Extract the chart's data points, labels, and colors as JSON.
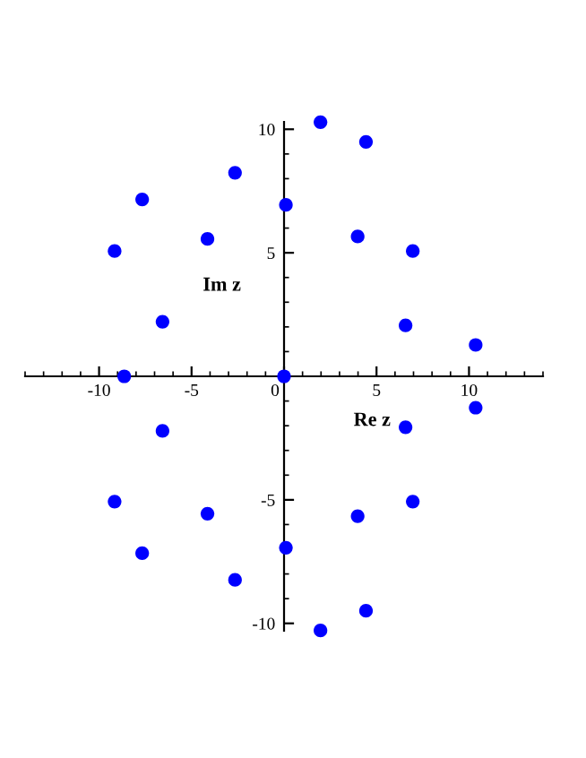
{
  "chart_data": {
    "type": "scatter",
    "xlabel": "Re z",
    "ylabel": "Im z",
    "x": [
      1.97,
      4.43,
      -2.65,
      -7.67,
      0.1,
      -4.14,
      3.98,
      -9.16,
      6.96,
      -6.57,
      6.57,
      10.36,
      -8.64,
      0,
      10.36,
      6.57,
      -6.57,
      -9.16,
      6.96,
      -4.14,
      3.98,
      0.1,
      -7.67,
      -2.65,
      4.43,
      1.97
    ],
    "values": [
      10.29,
      9.49,
      8.24,
      7.16,
      6.94,
      5.56,
      5.66,
      5.07,
      5.07,
      2.21,
      2.06,
      1.27,
      0,
      0,
      -1.27,
      -2.06,
      -2.21,
      -5.07,
      -5.07,
      -5.56,
      -5.66,
      -6.94,
      -7.16,
      -8.24,
      -9.49,
      -10.29
    ],
    "color": "#0000ff",
    "marker": "circle",
    "xlim": [
      -14,
      14
    ],
    "ylim": [
      -10.3,
      10.3
    ],
    "xticks": [
      -10,
      -5,
      0,
      5,
      10
    ],
    "yticks": [
      -10,
      -5,
      5,
      10
    ]
  }
}
